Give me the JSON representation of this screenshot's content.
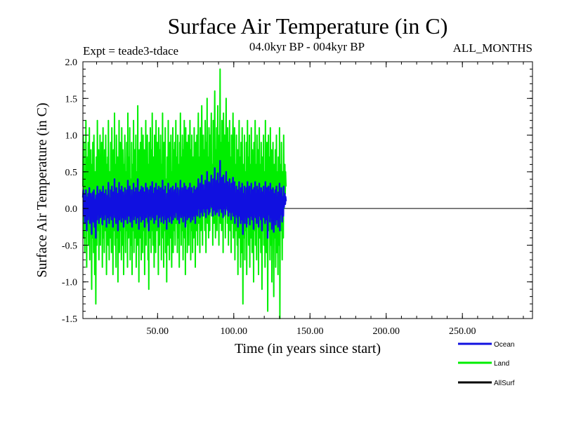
{
  "colors": {
    "ocean": "#1010e0",
    "land": "#00ee00",
    "allsurf": "#000000",
    "zero_line": "#000000"
  },
  "header": {
    "title": "Surface Air Temperature (in C)",
    "expt": "Expt = teade3-tdace",
    "period": "04.0kyr BP - 004kyr BP",
    "months": "ALL_MONTHS"
  },
  "legend": {
    "ocean": "Ocean",
    "land": "Land",
    "allsurf": "AllSurf"
  },
  "chart_data": {
    "type": "line",
    "title": "Surface Air Temperature (in C)",
    "xlabel": "Time (in years since start)",
    "ylabel": "Surface Air Temperature (in C)",
    "xlim": [
      1,
      296
    ],
    "ylim": [
      -1.5,
      2.0
    ],
    "xticks": [
      50,
      100,
      150,
      200,
      250
    ],
    "xtick_labels": [
      "50.00",
      "100.00",
      "150.00",
      "200.00",
      "250.00"
    ],
    "yticks": [
      -1.5,
      -1.0,
      -0.5,
      0.0,
      0.5,
      1.0,
      1.5,
      2.0
    ],
    "ytick_labels": [
      "-1.5",
      "-1.0",
      "-0.5",
      "0.0",
      "0.5",
      "1.0",
      "1.5",
      "2.0"
    ],
    "x_start": 1,
    "x_step": 0.25,
    "series": [
      {
        "name": "Land",
        "values": [
          0.3,
          1.0,
          -0.4,
          0.9,
          0.1,
          -0.6,
          0.5,
          -0.2,
          1.2,
          0.0,
          -0.8,
          0.7,
          0.2,
          -0.3,
          0.9,
          -0.5,
          0.4,
          1.1,
          -0.7,
          0.3,
          -0.2,
          0.8,
          0.0,
          -1.1,
          0.6,
          -0.4,
          0.9,
          0.2,
          -0.6,
          1.0,
          0.3,
          -0.9,
          0.5,
          -0.1,
          -1.3,
          0.7,
          0.1,
          -0.5,
          1.2,
          0.2,
          -0.3,
          0.8,
          -0.7,
          0.4,
          0.0,
          1.0,
          -0.5,
          0.6,
          -0.2,
          0.9,
          0.1,
          -0.8,
          0.5,
          1.1,
          -0.4,
          0.3,
          -0.6,
          0.8,
          0.0,
          -0.3,
          1.0,
          0.2,
          -0.9,
          0.6,
          -0.1,
          0.7,
          -0.5,
          1.2,
          0.3,
          -0.7,
          0.5,
          0.0,
          -0.4,
          0.9,
          0.1,
          -0.6,
          1.1,
          -0.2,
          0.4,
          -0.9,
          0.8,
          0.2,
          -0.3,
          1.3,
          -0.5,
          0.6,
          0.0,
          -0.8,
          1.0,
          0.3,
          -0.4,
          0.7,
          -1.0,
          0.5,
          0.1,
          1.2,
          -0.6,
          0.2,
          0.9,
          -0.3,
          0.4,
          -0.7,
          1.1,
          0.0,
          -0.5,
          0.8,
          0.3,
          -0.9,
          0.6,
          -0.2,
          1.0,
          0.1,
          -0.6,
          0.5,
          -0.3,
          0.9,
          0.2,
          -0.8,
          1.3,
          0.0,
          -0.4,
          0.7,
          -0.1,
          1.1,
          -0.7,
          0.4,
          0.2,
          -0.5,
          0.9,
          -0.9,
          0.6,
          0.1,
          -0.3,
          1.2,
          -0.6,
          0.3,
          0.8,
          -0.4,
          0.0,
          1.0,
          -0.8,
          0.5,
          0.2,
          -0.5,
          1.4,
          -0.2,
          0.6,
          -1.0,
          0.8,
          0.1,
          -0.4,
          0.9,
          0.3,
          -0.7,
          1.1,
          -0.1,
          0.4,
          -0.6,
          1.0,
          0.2,
          -0.3,
          0.8,
          -0.9,
          0.5,
          0.0,
          1.2,
          -0.5,
          0.7,
          -0.2,
          1.0,
          0.3,
          -0.7,
          0.6,
          -1.1,
          0.9,
          0.1,
          -0.4,
          1.1,
          0.2,
          -0.6,
          0.8,
          -0.3,
          1.3,
          0.0,
          -0.5,
          0.7,
          0.4,
          -0.8,
          1.0,
          -0.2,
          0.5,
          -0.6,
          1.2,
          0.1,
          -0.3,
          0.9,
          -0.1,
          0.6,
          -0.9,
          1.1,
          0.3,
          -0.5,
          0.8,
          -0.2,
          1.0,
          0.2,
          -0.7,
          0.6,
          0.0,
          1.3,
          -0.4,
          0.5,
          -0.8,
          0.9,
          0.1,
          -0.3,
          1.1,
          -0.6,
          0.4,
          0.2,
          -1.0,
          0.7,
          0.3,
          -0.5,
          1.2,
          -0.2,
          0.6,
          -0.7,
          0.9,
          0.0,
          -0.4,
          1.0,
          0.2,
          -0.8,
          0.5,
          -0.1,
          1.1,
          -0.6,
          0.3,
          0.8,
          -0.3,
          0.9,
          -0.5,
          0.4,
          1.2,
          -0.2,
          0.7,
          0.1,
          -0.6,
          1.0,
          -0.4,
          0.6,
          0.3,
          -0.8,
          0.9,
          -0.1,
          1.3,
          0.2,
          -0.5,
          0.7,
          -0.3,
          1.0,
          0.4,
          -0.7,
          0.8,
          0.0,
          1.2,
          -0.4,
          0.5,
          -0.9,
          1.1,
          0.3,
          -0.2,
          0.9,
          -0.6,
          0.6,
          0.1,
          1.0,
          -0.5,
          0.4,
          -0.2,
          1.2,
          0.2,
          -0.7,
          0.8,
          -0.3,
          1.0,
          0.0,
          -0.6,
          0.7,
          0.4,
          -0.4,
          1.1,
          -0.1,
          0.6,
          -0.8,
          0.9,
          0.2,
          -0.3,
          1.0,
          0.5,
          -0.5,
          0.8,
          1.3,
          -0.2,
          0.7,
          0.3,
          -0.6,
          1.1,
          0.0,
          -0.3,
          0.9,
          1.4,
          0.2,
          -0.5,
          0.6,
          1.0,
          -0.1,
          0.8,
          0.4,
          -0.3,
          1.2,
          0.3,
          -0.6,
          0.9,
          0.1,
          1.5,
          -0.2,
          0.7,
          0.2,
          -0.4,
          1.1,
          0.5,
          -0.3,
          1.0,
          0.0,
          0.8,
          1.3,
          -0.1,
          0.6,
          0.3,
          -0.5,
          1.2,
          0.4,
          -0.2,
          0.9,
          1.6,
          0.1,
          -0.4,
          0.8,
          0.2,
          1.1,
          -0.3,
          0.7,
          1.4,
          0.0,
          0.5,
          -0.5,
          1.0,
          0.3,
          1.9,
          -0.2,
          0.9,
          0.4,
          -0.3,
          1.2,
          0.1,
          0.7,
          -0.6,
          1.3,
          0.2,
          -0.1,
          1.0,
          0.5,
          -0.4,
          0.8,
          1.5,
          0.0,
          0.6,
          -0.2,
          1.1,
          0.3,
          -0.5,
          0.9,
          0.1,
          1.2,
          -0.3,
          0.7,
          0.4,
          -0.6,
          1.0,
          0.2,
          -0.2,
          0.8,
          1.3,
          -0.4,
          0.5,
          0.0,
          1.1,
          -0.7,
          0.6,
          0.3,
          -0.3,
          1.0,
          0.1,
          -0.5,
          0.8,
          -0.9,
          0.5,
          0.2,
          1.2,
          -0.4,
          0.7,
          -0.1,
          -0.8,
          0.9,
          0.3,
          -0.6,
          1.1,
          0.0,
          -1.3,
          0.6,
          0.2,
          -0.4,
          1.0,
          -0.7,
          0.5,
          0.1,
          -0.3,
          0.9,
          -0.9,
          0.4,
          1.2,
          -0.2,
          0.7,
          -0.5,
          0.3,
          1.0,
          -0.8,
          0.6,
          0.0,
          -0.4,
          1.1,
          0.2,
          -0.6,
          0.8,
          -0.1,
          0.5,
          -1.0,
          0.9,
          0.3,
          -0.3,
          1.2,
          -0.5,
          0.6,
          0.1,
          -0.7,
          1.0,
          0.2,
          -0.2,
          0.8,
          -0.9,
          0.4,
          1.1,
          -0.4,
          0.6,
          0.0,
          -0.6,
          0.9,
          0.3,
          -1.1,
          0.7,
          0.1,
          -0.3,
          1.0,
          -0.5,
          0.5,
          0.2,
          -0.8,
          1.2,
          -0.1,
          0.6,
          -0.6,
          0.9,
          0.3,
          -1.4,
          0.4,
          1.0,
          -0.3,
          0.7,
          0.0,
          -0.7,
          1.1,
          0.2,
          -0.5,
          0.8,
          -1.0,
          0.5,
          0.3,
          0.9,
          -0.2,
          -1.2,
          0.6,
          0.1,
          -0.4,
          0.8,
          -0.8,
          0.3,
          1.0,
          -0.6,
          0.5,
          0.0,
          -0.9,
          0.7,
          0.2,
          -0.5,
          1.1,
          -1.5,
          0.4,
          0.6,
          -0.3,
          0.9,
          0.1,
          -0.7,
          0.5,
          0.3,
          -0.4,
          1.0,
          0.0,
          0.4,
          0.6,
          0.2,
          0.5,
          0.3
        ]
      },
      {
        "name": "Ocean",
        "values": [
          0.15,
          0.25,
          -0.1,
          0.2,
          0.05,
          -0.2,
          0.1,
          -0.05,
          0.25,
          0.0,
          -0.3,
          0.15,
          0.1,
          -0.15,
          0.2,
          -0.1,
          0.12,
          0.28,
          -0.2,
          0.05,
          -0.05,
          0.2,
          0.0,
          -0.35,
          0.15,
          -0.1,
          0.22,
          0.08,
          -0.18,
          0.25,
          0.1,
          -0.25,
          0.12,
          0.0,
          -0.4,
          0.18,
          0.05,
          -0.15,
          0.3,
          0.08,
          -0.08,
          0.2,
          -0.2,
          0.1,
          0.0,
          0.25,
          -0.12,
          0.15,
          -0.05,
          0.22,
          0.05,
          -0.22,
          0.12,
          0.3,
          -0.1,
          0.08,
          -0.15,
          0.2,
          0.02,
          -0.08,
          0.25,
          0.06,
          -0.25,
          0.15,
          0.0,
          0.18,
          -0.12,
          0.35,
          0.1,
          -0.2,
          0.14,
          0.02,
          -0.1,
          0.25,
          0.04,
          -0.15,
          0.3,
          -0.05,
          0.12,
          -0.25,
          0.22,
          0.06,
          -0.08,
          0.4,
          -0.12,
          0.16,
          0.02,
          -0.2,
          0.28,
          0.1,
          -0.1,
          0.2,
          -0.3,
          0.14,
          0.04,
          0.35,
          -0.15,
          0.06,
          0.25,
          -0.08,
          0.12,
          -0.18,
          0.3,
          0.02,
          -0.12,
          0.22,
          0.1,
          -0.25,
          0.16,
          -0.05,
          0.28,
          0.04,
          -0.15,
          0.14,
          -0.08,
          0.25,
          0.06,
          -0.2,
          0.38,
          0.0,
          -0.1,
          0.2,
          0.0,
          0.3,
          -0.18,
          0.12,
          0.06,
          -0.12,
          0.25,
          -0.25,
          0.16,
          0.04,
          -0.08,
          0.34,
          -0.15,
          0.1,
          0.22,
          -0.1,
          0.0,
          0.28,
          -0.2,
          0.14,
          0.06,
          -0.12,
          0.4,
          -0.05,
          0.16,
          -0.28,
          0.22,
          0.04,
          -0.1,
          0.25,
          0.1,
          -0.18,
          0.3,
          0.0,
          0.12,
          -0.15,
          0.28,
          0.06,
          -0.08,
          0.22,
          -0.25,
          0.14,
          0.0,
          0.34,
          -0.12,
          0.2,
          -0.05,
          0.28,
          0.1,
          -0.18,
          0.16,
          -0.3,
          0.25,
          0.04,
          -0.1,
          0.3,
          0.06,
          -0.15,
          0.22,
          -0.08,
          0.36,
          0.02,
          -0.12,
          0.2,
          0.12,
          -0.2,
          0.28,
          -0.05,
          0.14,
          -0.15,
          0.34,
          0.04,
          -0.08,
          0.25,
          0.0,
          0.16,
          -0.25,
          0.3,
          0.1,
          -0.12,
          0.22,
          -0.05,
          0.28,
          0.06,
          -0.18,
          0.16,
          0.02,
          0.38,
          -0.1,
          0.14,
          -0.2,
          0.25,
          0.04,
          -0.08,
          0.3,
          -0.15,
          0.12,
          0.06,
          -0.28,
          0.2,
          0.1,
          -0.12,
          0.34,
          -0.05,
          0.16,
          -0.18,
          0.25,
          0.0,
          -0.1,
          0.28,
          0.06,
          -0.2,
          0.14,
          0.0,
          0.3,
          -0.15,
          0.1,
          0.22,
          -0.08,
          0.25,
          -0.12,
          0.12,
          0.34,
          -0.05,
          0.2,
          0.04,
          -0.15,
          0.28,
          -0.1,
          0.16,
          0.1,
          -0.2,
          0.25,
          0.0,
          0.38,
          0.06,
          -0.12,
          0.2,
          -0.08,
          0.28,
          0.12,
          -0.18,
          0.22,
          0.02,
          0.34,
          -0.1,
          0.14,
          -0.25,
          0.3,
          0.1,
          -0.05,
          0.25,
          -0.15,
          0.16,
          0.04,
          0.28,
          -0.12,
          0.12,
          -0.05,
          0.34,
          0.06,
          -0.18,
          0.22,
          -0.08,
          0.28,
          0.02,
          -0.15,
          0.2,
          0.12,
          -0.1,
          0.3,
          0.0,
          0.16,
          -0.2,
          0.25,
          0.06,
          -0.08,
          0.28,
          0.16,
          -0.1,
          0.25,
          0.4,
          0.0,
          0.22,
          0.12,
          -0.12,
          0.34,
          0.05,
          -0.05,
          0.28,
          0.45,
          0.1,
          -0.1,
          0.2,
          0.32,
          0.0,
          0.25,
          0.15,
          -0.05,
          0.38,
          0.12,
          -0.12,
          0.3,
          0.06,
          0.5,
          0.0,
          0.25,
          0.1,
          -0.08,
          0.36,
          0.2,
          -0.05,
          0.34,
          0.05,
          0.28,
          0.45,
          0.02,
          0.22,
          0.12,
          -0.1,
          0.4,
          0.16,
          -0.02,
          0.3,
          0.55,
          0.06,
          -0.08,
          0.28,
          0.1,
          0.38,
          -0.05,
          0.25,
          0.48,
          0.02,
          0.2,
          -0.1,
          0.34,
          0.12,
          0.65,
          0.0,
          0.3,
          0.16,
          -0.05,
          0.42,
          0.06,
          0.25,
          -0.12,
          0.45,
          0.1,
          0.0,
          0.34,
          0.2,
          -0.08,
          0.28,
          0.5,
          0.04,
          0.22,
          -0.02,
          0.36,
          0.12,
          -0.1,
          0.3,
          0.05,
          0.4,
          -0.05,
          0.25,
          0.14,
          -0.15,
          0.34,
          0.08,
          -0.05,
          0.28,
          0.42,
          -0.1,
          0.18,
          0.02,
          0.36,
          -0.2,
          0.2,
          0.1,
          -0.08,
          0.3,
          0.04,
          -0.12,
          0.25,
          -0.25,
          0.16,
          0.06,
          0.36,
          -0.1,
          0.22,
          0.0,
          -0.2,
          0.28,
          0.1,
          -0.15,
          0.34,
          0.02,
          -0.35,
          0.2,
          0.06,
          -0.1,
          0.3,
          -0.2,
          0.16,
          0.04,
          -0.08,
          0.28,
          -0.25,
          0.12,
          0.36,
          -0.05,
          0.22,
          -0.12,
          0.1,
          0.3,
          -0.22,
          0.18,
          0.0,
          -0.1,
          0.34,
          0.06,
          -0.15,
          0.25,
          0.0,
          0.16,
          -0.28,
          0.28,
          0.1,
          -0.08,
          0.36,
          -0.12,
          0.2,
          0.04,
          -0.2,
          0.3,
          0.06,
          -0.05,
          0.25,
          -0.25,
          0.12,
          0.34,
          -0.1,
          0.2,
          0.02,
          -0.15,
          0.28,
          0.1,
          -0.3,
          0.22,
          0.04,
          -0.08,
          0.3,
          -0.12,
          0.16,
          0.06,
          -0.2,
          0.36,
          0.0,
          0.18,
          -0.15,
          0.28,
          0.1,
          -0.4,
          0.14,
          0.3,
          -0.08,
          0.22,
          0.02,
          -0.18,
          0.34,
          0.06,
          -0.12,
          0.25,
          -0.28,
          0.16,
          0.1,
          0.28,
          -0.05,
          -0.32,
          0.2,
          0.04,
          -0.1,
          0.25,
          -0.22,
          0.1,
          0.3,
          -0.15,
          0.16,
          0.02,
          -0.25,
          0.22,
          0.06,
          -0.12,
          0.34,
          -0.3,
          0.14,
          0.2,
          -0.08,
          0.28,
          0.04,
          -0.18,
          0.16,
          0.1,
          -0.1,
          0.3,
          0.02,
          0.12,
          0.2,
          0.06,
          0.16,
          0.1
        ]
      },
      {
        "name": "AllSurf",
        "values": []
      }
    ]
  }
}
